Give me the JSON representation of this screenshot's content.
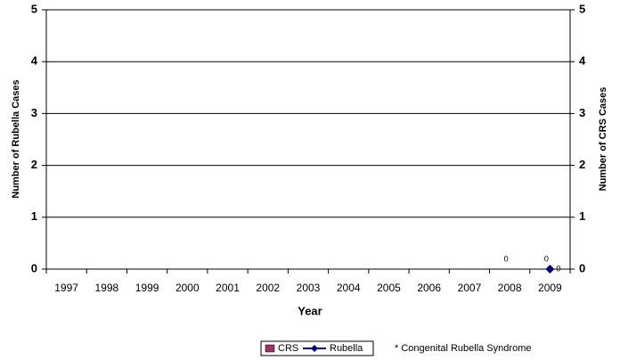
{
  "chart_data": {
    "type": "bar-line",
    "categories": [
      "1997",
      "1998",
      "1999",
      "2000",
      "2001",
      "2002",
      "2003",
      "2004",
      "2005",
      "2006",
      "2007",
      "2008",
      "2009"
    ],
    "series": [
      {
        "name": "CRS",
        "type": "bar",
        "axis": "y2",
        "color": "#993366",
        "values": [
          null,
          null,
          null,
          null,
          null,
          null,
          null,
          null,
          null,
          null,
          null,
          0,
          0
        ]
      },
      {
        "name": "Rubella",
        "type": "line",
        "color": "#000080",
        "values": [
          null,
          null,
          null,
          null,
          null,
          null,
          null,
          null,
          null,
          null,
          null,
          null,
          0
        ]
      }
    ],
    "xlabel": "Year",
    "ylabel": "Number of Rubella Cases",
    "y2label": "Number of CRS Cases",
    "ylim": [
      0,
      5
    ],
    "yticks": [
      0,
      1,
      2,
      3,
      4,
      5
    ],
    "y2lim": [
      0,
      5
    ],
    "y2ticks": [
      0,
      1,
      2,
      3,
      4,
      5
    ],
    "grid": true,
    "legend": "bottom",
    "note": "* Congenital Rubella Syndrome"
  }
}
